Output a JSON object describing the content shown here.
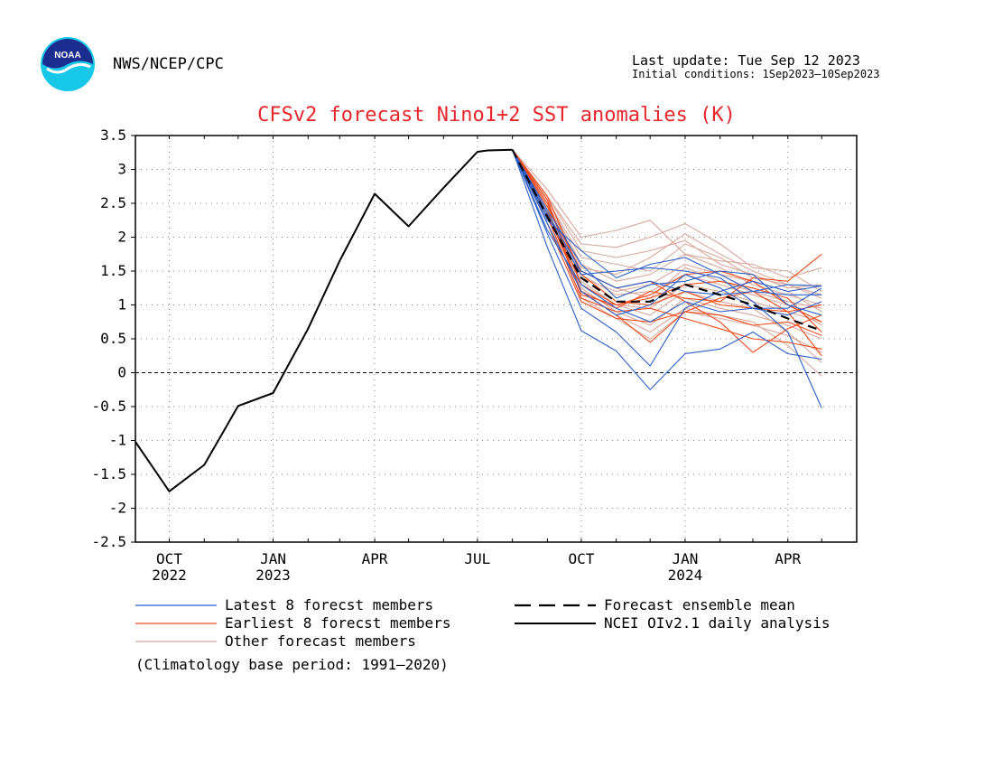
{
  "header": {
    "org": "NWS/NCEP/CPC",
    "last_update": "Last update: Tue Sep 12 2023",
    "initial_conditions": "Initial conditions: 1Sep2023–10Sep2023",
    "logo_text": "NOAA"
  },
  "footer": {
    "climatology": "(Climatology base period: 1991–2020)"
  },
  "colors": {
    "title": "#e8262b",
    "latest": "#2a5fc9",
    "earliest": "#f04a1b",
    "other": "#d8a89c",
    "observed": "#000000",
    "mean": "#000000"
  },
  "chart_data": {
    "type": "line",
    "title": "CFSv2 forecast Nino1+2 SST anomalies (K)",
    "xlabel": "",
    "ylabel": "",
    "ylim": [
      -2.5,
      3.5
    ],
    "yticks": [
      "3.5",
      "3",
      "2.5",
      "2",
      "1.5",
      "1",
      "0.5",
      "0",
      "-0.5",
      "-1",
      "-1.5",
      "-2",
      "-2.5"
    ],
    "x_months": [
      "2022-09",
      "2022-10",
      "2022-11",
      "2022-12",
      "2023-01",
      "2023-02",
      "2023-03",
      "2023-04",
      "2023-05",
      "2023-06",
      "2023-07",
      "2023-08",
      "2023-09",
      "2023-10",
      "2023-11",
      "2023-12",
      "2024-01",
      "2024-02",
      "2024-03",
      "2024-04",
      "2024-05",
      "2024-06"
    ],
    "xtick_labels": [
      {
        "month": "2022-10",
        "label": "OCT",
        "year": "2022"
      },
      {
        "month": "2023-01",
        "label": "JAN",
        "year": "2023"
      },
      {
        "month": "2023-04",
        "label": "APR",
        "year": ""
      },
      {
        "month": "2023-07",
        "label": "JUL",
        "year": ""
      },
      {
        "month": "2023-10",
        "label": "OCT",
        "year": ""
      },
      {
        "month": "2024-01",
        "label": "JAN",
        "year": "2024"
      },
      {
        "month": "2024-04",
        "label": "APR",
        "year": ""
      }
    ],
    "grid": true,
    "legend_position": "bottom",
    "zero_line": true,
    "observed": {
      "name": "NCEI OIv2.1 daily analysis",
      "points": [
        [
          "2022-09-01",
          -1.02
        ],
        [
          "2022-10-01",
          -1.75
        ],
        [
          "2022-11-01",
          -1.36
        ],
        [
          "2022-12-01",
          -0.49
        ],
        [
          "2023-01-01",
          -0.3
        ],
        [
          "2023-02-01",
          0.65
        ],
        [
          "2023-03-01",
          1.65
        ],
        [
          "2023-04-01",
          2.64
        ],
        [
          "2023-05-01",
          2.16
        ],
        [
          "2023-06-01",
          2.73
        ],
        [
          "2023-07-01",
          3.26
        ],
        [
          "2023-07-10",
          3.28
        ],
        [
          "2023-08-01",
          3.29
        ]
      ]
    },
    "ensemble_mean": {
      "name": "Forecast ensemble mean",
      "start": 3.29,
      "values": [
        2.3,
        1.4,
        1.05,
        1.05,
        1.3,
        1.15,
        1.0,
        0.8,
        0.62
      ]
    },
    "latest_members": {
      "name": "Latest 8 forecst members",
      "start": 3.29,
      "members": [
        [
          1.85,
          0.62,
          0.32,
          -0.25,
          0.28,
          0.35,
          0.6,
          0.28,
          0.2
        ],
        [
          2.05,
          0.95,
          0.6,
          0.1,
          0.95,
          1.2,
          1.35,
          1.2,
          1.28
        ],
        [
          2.2,
          1.2,
          0.85,
          1.0,
          1.45,
          1.25,
          0.95,
          0.95,
          1.25
        ],
        [
          2.3,
          1.45,
          1.5,
          1.55,
          1.5,
          1.4,
          1.05,
          0.6,
          -0.52
        ],
        [
          2.25,
          1.8,
          1.4,
          1.6,
          1.7,
          1.45,
          1.2,
          1.3,
          1.28
        ],
        [
          2.4,
          1.6,
          1.1,
          1.3,
          1.35,
          1.5,
          1.45,
          1.0,
          0.85
        ],
        [
          2.1,
          1.3,
          0.95,
          0.75,
          1.05,
          0.9,
          0.95,
          0.85,
          1.05
        ],
        [
          2.35,
          1.5,
          1.25,
          1.35,
          1.2,
          1.15,
          1.2,
          1.15,
          1.15
        ]
      ]
    },
    "earliest_members": {
      "name": "Earliest 8 forecst members",
      "start": 3.29,
      "members": [
        [
          2.4,
          1.2,
          0.95,
          1.2,
          1.1,
          1.05,
          1.4,
          1.35,
          1.75
        ],
        [
          2.3,
          1.1,
          0.9,
          0.95,
          0.8,
          0.65,
          0.5,
          0.45,
          0.35
        ],
        [
          2.5,
          1.3,
          1.0,
          1.1,
          1.3,
          1.35,
          1.25,
          1.1,
          0.6
        ],
        [
          2.2,
          1.05,
          0.8,
          0.75,
          0.9,
          0.85,
          0.7,
          0.75,
          0.55
        ],
        [
          2.6,
          1.45,
          1.05,
          1.0,
          1.2,
          1.0,
          0.95,
          0.9,
          1.0
        ],
        [
          2.35,
          1.2,
          0.85,
          0.45,
          0.9,
          1.1,
          1.2,
          0.9,
          0.25
        ],
        [
          2.45,
          1.5,
          1.25,
          1.35,
          1.05,
          0.75,
          0.3,
          0.65,
          0.85
        ],
        [
          2.55,
          1.15,
          1.0,
          1.15,
          1.45,
          1.5,
          1.35,
          1.0,
          0.75
        ]
      ]
    },
    "other_members": {
      "name": "Other forecast members",
      "start": 3.29,
      "members": [
        [
          2.7,
          2.0,
          2.1,
          2.25,
          1.75,
          1.65,
          1.6,
          1.4,
          1.55
        ],
        [
          2.6,
          1.9,
          1.85,
          2.0,
          2.2,
          1.9,
          1.55,
          1.5,
          1.2
        ],
        [
          2.55,
          1.7,
          1.6,
          1.5,
          1.9,
          1.7,
          1.4,
          1.3,
          1.15
        ],
        [
          2.45,
          1.5,
          1.25,
          1.1,
          1.55,
          1.35,
          1.2,
          1.05,
          0.95
        ],
        [
          2.4,
          1.3,
          1.0,
          0.95,
          1.3,
          1.2,
          1.05,
          0.9,
          0.75
        ],
        [
          2.35,
          1.25,
          0.9,
          0.7,
          1.1,
          0.95,
          0.85,
          0.7,
          0.5
        ],
        [
          2.3,
          1.1,
          0.8,
          0.5,
          0.9,
          0.8,
          0.7,
          0.55,
          0.3
        ],
        [
          2.5,
          1.55,
          1.45,
          1.7,
          2.05,
          1.75,
          1.5,
          1.3,
          1.1
        ],
        [
          2.45,
          1.4,
          1.2,
          1.3,
          1.6,
          1.45,
          1.35,
          1.2,
          0.9
        ],
        [
          2.4,
          1.35,
          1.0,
          0.85,
          1.2,
          1.05,
          0.95,
          0.6,
          0.15
        ],
        [
          2.35,
          1.2,
          0.85,
          0.6,
          0.95,
          0.85,
          0.75,
          0.4,
          -0.05
        ],
        [
          2.55,
          1.6,
          1.35,
          1.45,
          1.75,
          1.55,
          1.3,
          1.15,
          1.0
        ],
        [
          2.5,
          1.45,
          1.15,
          1.2,
          1.45,
          1.3,
          1.15,
          1.0,
          0.7
        ],
        [
          2.6,
          1.8,
          1.7,
          1.8,
          1.95,
          1.6,
          1.45,
          1.25,
          1.3
        ]
      ]
    }
  }
}
